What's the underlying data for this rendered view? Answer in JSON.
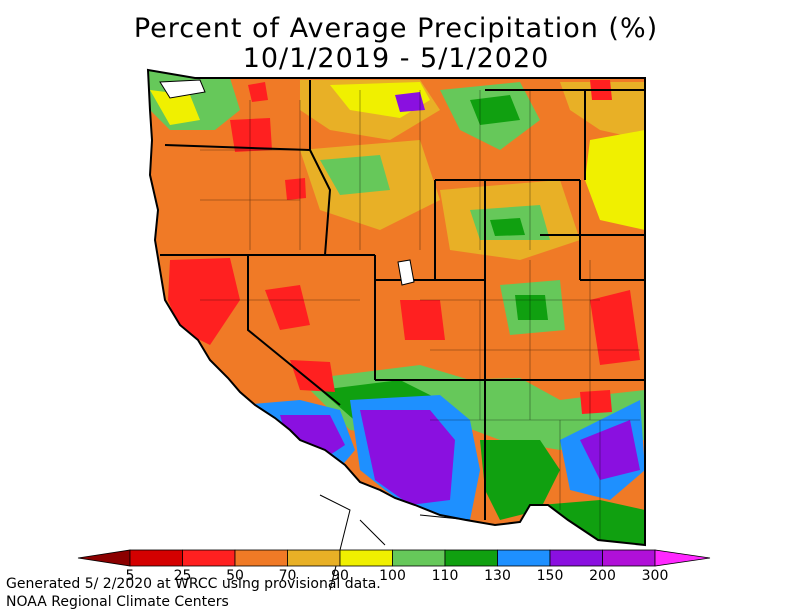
{
  "title": {
    "line1": "Percent of Average Precipitation (%)",
    "line2": "10/1/2019 - 5/1/2020"
  },
  "legend": {
    "labels": [
      "5",
      "25",
      "50",
      "70",
      "90",
      "100",
      "110",
      "130",
      "150",
      "200",
      "300"
    ],
    "colors": [
      "#8b0000",
      "#d40000",
      "#ff2020",
      "#f07a26",
      "#e8b026",
      "#f0f000",
      "#66c85a",
      "#10a010",
      "#1e90ff",
      "#8a10e0",
      "#b010d8",
      "#ff28ff"
    ]
  },
  "footer": {
    "line1": "Generated 5/ 2/2020 at WRCC using provisional data.",
    "line2": "NOAA Regional Climate Centers"
  }
}
